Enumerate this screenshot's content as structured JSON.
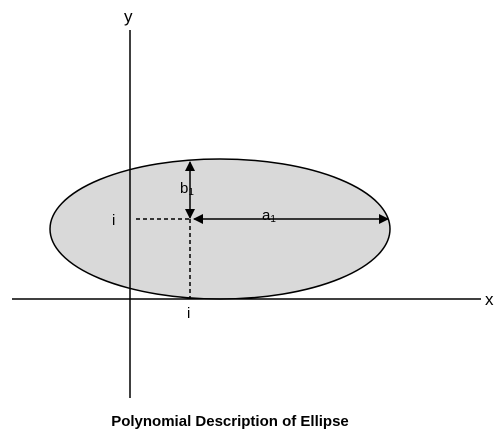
{
  "labels": {
    "x_axis": "x",
    "y_axis": "y",
    "semi_major": "a",
    "semi_major_sub": "1",
    "semi_minor": "b",
    "semi_minor_sub": "1",
    "center_y_marker": "i",
    "center_x_marker": "i",
    "caption": "Polynomial Description of Ellipse"
  },
  "colors": {
    "ellipse_fill": "#d9d9d9",
    "stroke": "#000000"
  }
}
